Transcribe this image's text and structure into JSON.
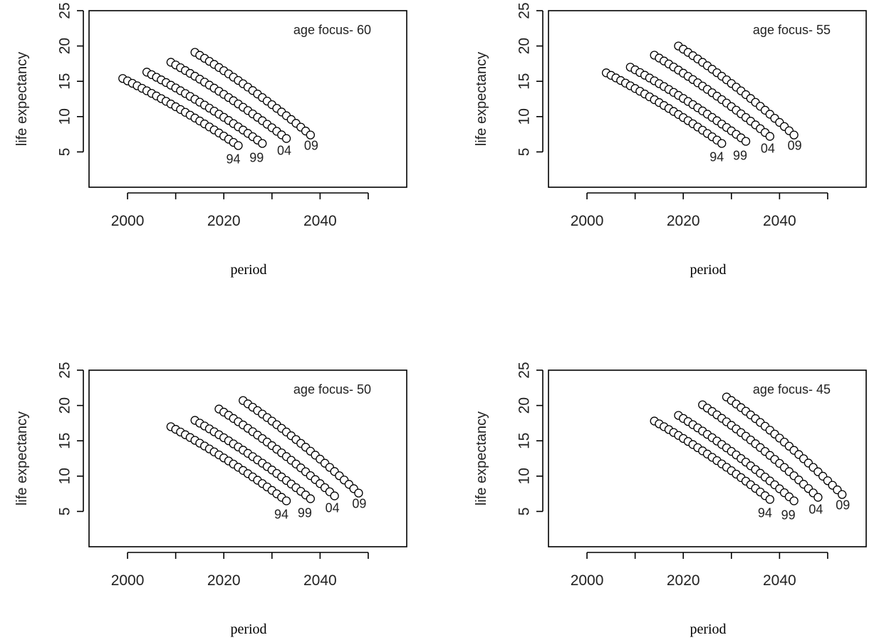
{
  "chart_data": [
    {
      "type": "scatter",
      "title": "age focus- 60",
      "xlabel": "period",
      "ylabel": "life expectancy",
      "xlim": [
        1992,
        2058
      ],
      "ylim": [
        0,
        25
      ],
      "xticks": [
        2000,
        2020,
        2040
      ],
      "yticks": [
        5,
        10,
        15,
        20,
        25
      ],
      "series": [
        {
          "name": "94",
          "x_start": 1999,
          "x_end": 2023,
          "y_start": 15.4,
          "y_end": 5.9
        },
        {
          "name": "99",
          "x_start": 2004,
          "x_end": 2028,
          "y_start": 16.3,
          "y_end": 6.2
        },
        {
          "name": "04",
          "x_start": 2009,
          "x_end": 2033,
          "y_start": 17.7,
          "y_end": 6.9
        },
        {
          "name": "09",
          "x_start": 2014,
          "x_end": 2038,
          "y_start": 19.1,
          "y_end": 7.4
        }
      ]
    },
    {
      "type": "scatter",
      "title": "age focus- 55",
      "xlabel": "period",
      "ylabel": "life expectancy",
      "xlim": [
        1992,
        2058
      ],
      "ylim": [
        0,
        25
      ],
      "xticks": [
        2000,
        2020,
        2040
      ],
      "yticks": [
        5,
        10,
        15,
        20,
        25
      ],
      "series": [
        {
          "name": "94",
          "x_start": 2004,
          "x_end": 2028,
          "y_start": 16.2,
          "y_end": 6.2
        },
        {
          "name": "99",
          "x_start": 2009,
          "x_end": 2033,
          "y_start": 17.0,
          "y_end": 6.5
        },
        {
          "name": "04",
          "x_start": 2014,
          "x_end": 2038,
          "y_start": 18.7,
          "y_end": 7.2
        },
        {
          "name": "09",
          "x_start": 2019,
          "x_end": 2043,
          "y_start": 20.0,
          "y_end": 7.4
        }
      ]
    },
    {
      "type": "scatter",
      "title": "age focus- 50",
      "xlabel": "period",
      "ylabel": "life expectancy",
      "xlim": [
        1992,
        2058
      ],
      "ylim": [
        0,
        25
      ],
      "xticks": [
        2000,
        2020,
        2040
      ],
      "yticks": [
        5,
        10,
        15,
        20,
        25
      ],
      "series": [
        {
          "name": "94",
          "x_start": 2009,
          "x_end": 2033,
          "y_start": 17.0,
          "y_end": 6.5
        },
        {
          "name": "99",
          "x_start": 2014,
          "x_end": 2038,
          "y_start": 17.9,
          "y_end": 6.8
        },
        {
          "name": "04",
          "x_start": 2019,
          "x_end": 2043,
          "y_start": 19.5,
          "y_end": 7.2
        },
        {
          "name": "09",
          "x_start": 2024,
          "x_end": 2048,
          "y_start": 20.7,
          "y_end": 7.6
        }
      ]
    },
    {
      "type": "scatter",
      "title": "age focus- 45",
      "xlabel": "period",
      "ylabel": "life expectancy",
      "xlim": [
        1992,
        2058
      ],
      "ylim": [
        0,
        25
      ],
      "xticks": [
        2000,
        2020,
        2040
      ],
      "yticks": [
        5,
        10,
        15,
        20,
        25
      ],
      "series": [
        {
          "name": "94",
          "x_start": 2014,
          "x_end": 2038,
          "y_start": 17.8,
          "y_end": 6.7
        },
        {
          "name": "99",
          "x_start": 2019,
          "x_end": 2043,
          "y_start": 18.6,
          "y_end": 6.5
        },
        {
          "name": "04",
          "x_start": 2024,
          "x_end": 2048,
          "y_start": 20.1,
          "y_end": 7.0
        },
        {
          "name": "09",
          "x_start": 2029,
          "x_end": 2053,
          "y_start": 21.2,
          "y_end": 7.4
        }
      ]
    }
  ]
}
